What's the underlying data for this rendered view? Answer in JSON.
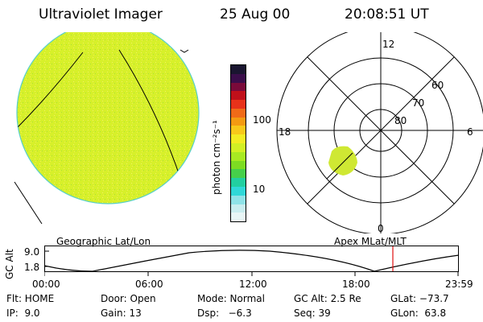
{
  "header": {
    "title": "Ultraviolet Imager",
    "date": "25 Aug 00",
    "time": "20:08:51 UT"
  },
  "colorbar": {
    "unit_label": "photon cm⁻²s⁻¹",
    "ticks": [
      "100",
      "10"
    ],
    "colors": [
      "#1a1530",
      "#3a0d4a",
      "#7a0a3a",
      "#c0101a",
      "#e8321a",
      "#f06a18",
      "#f49a12",
      "#f8c81a",
      "#f3ec22",
      "#d2f024",
      "#a8ea22",
      "#7ddc22",
      "#46d04a",
      "#22cfa0",
      "#30d8d8",
      "#8fe3e8",
      "#c9eef0",
      "#e8f6f6"
    ]
  },
  "disk_color": "#d7f02a",
  "polar": {
    "mlt_labels": {
      "top": "12",
      "left": "18",
      "right": "6",
      "bottom": "0"
    },
    "lat_labels": [
      "60",
      "70",
      "80"
    ],
    "patch_color": "#cfe833"
  },
  "altitude_plot": {
    "left_label": "Geographic Lat/Lon",
    "right_label": "Apex MLat/MLT",
    "y_axis_label": "GC Alt",
    "y_ticks": [
      "9.0",
      "1.8"
    ],
    "x_ticks": [
      "00:00",
      "06:00",
      "12:00",
      "18:00",
      "23:59"
    ],
    "marker_color": "#e01010"
  },
  "status": {
    "row1": {
      "flt": "Flt: HOME",
      "door": "Door: Open",
      "mode": "Mode: Normal",
      "gc_alt": "GC Alt: 2.5 Re",
      "glat": "GLat: −73.7"
    },
    "row2": {
      "ip": "IP:  9.0",
      "gain": "Gain: 13",
      "dsp": "Dsp:   −6.3",
      "seq": "Seq: 39",
      "glon": "GLon:  63.8"
    }
  }
}
